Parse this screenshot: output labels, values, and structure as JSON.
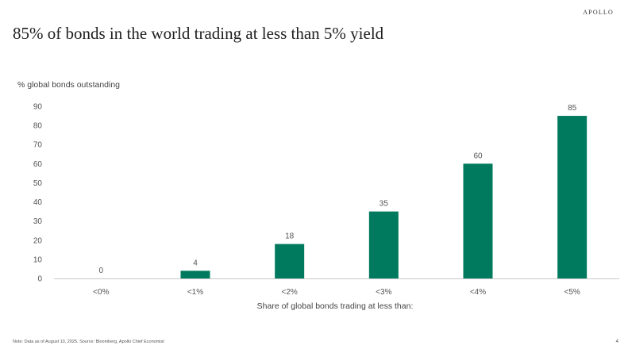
{
  "header": {
    "brand": "APOLLO",
    "title": "85% of bonds in the world trading at less than 5% yield"
  },
  "footer": {
    "note": "Note: Data as of August 10, 2025. Source: Bloomberg, Apollo Chief Economist",
    "page": "4"
  },
  "colors": {
    "bar": "#007a5e",
    "axis": "#c8c8c8"
  },
  "chart_data": {
    "type": "bar",
    "title": "85% of bonds in the world trading at less than 5% yield",
    "ylabel": "% global bonds outstanding",
    "xlabel": "Share of global bonds trading at less than:",
    "categories": [
      "<0%",
      "<1%",
      "<2%",
      "<3%",
      "<4%",
      "<5%"
    ],
    "values": [
      0,
      4,
      18,
      35,
      60,
      85
    ],
    "data_labels": [
      "0",
      "4",
      "18",
      "35",
      "60",
      "85"
    ],
    "ylim": [
      0,
      90
    ],
    "yticks": [
      "0",
      "10",
      "20",
      "30",
      "40",
      "50",
      "60",
      "70",
      "80",
      "90"
    ],
    "grid": false,
    "legend": "none"
  }
}
